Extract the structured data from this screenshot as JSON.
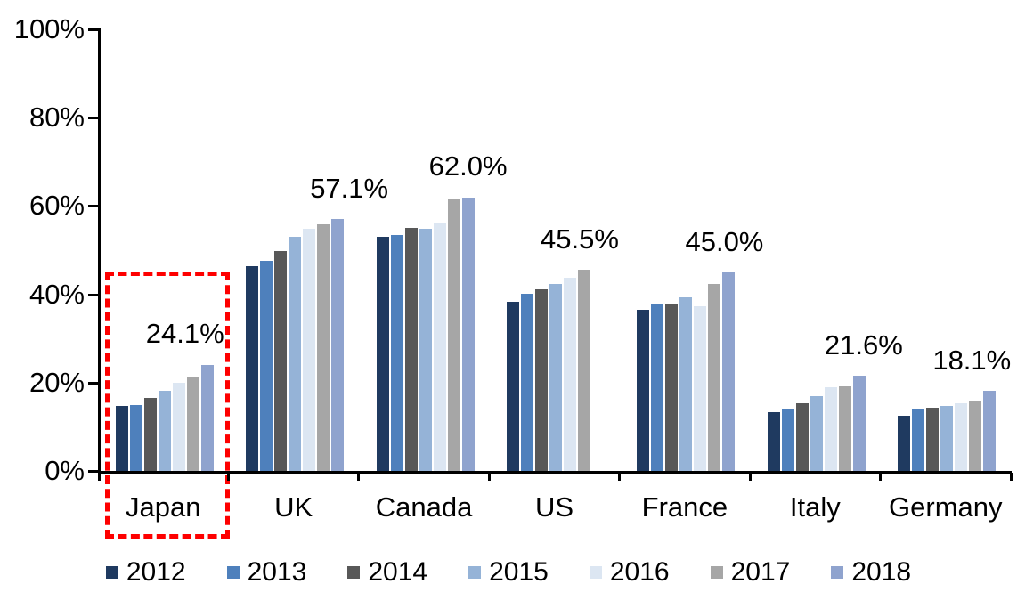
{
  "chart_data": {
    "type": "bar",
    "title": "",
    "categories": [
      "Japan",
      "UK",
      "Canada",
      "US",
      "France",
      "Italy",
      "Germany"
    ],
    "series": [
      {
        "name": "2012",
        "color": "#1F3A60",
        "values": [
          14.7,
          46.4,
          53.1,
          38.4,
          36.6,
          13.3,
          12.6
        ]
      },
      {
        "name": "2013",
        "color": "#4E80BC",
        "values": [
          14.9,
          47.6,
          53.5,
          40.2,
          37.8,
          14.1,
          13.9
        ]
      },
      {
        "name": "2014",
        "color": "#585858",
        "values": [
          16.6,
          49.8,
          55.1,
          41.2,
          37.7,
          15.3,
          14.3
        ]
      },
      {
        "name": "2015",
        "color": "#95B3D7",
        "values": [
          18.2,
          53.1,
          54.9,
          42.3,
          39.3,
          16.9,
          14.7
        ]
      },
      {
        "name": "2016",
        "color": "#DCE6F2",
        "values": [
          20.0,
          54.8,
          56.3,
          43.7,
          37.3,
          19.0,
          15.3
        ]
      },
      {
        "name": "2017",
        "color": "#A6A6A6",
        "values": [
          21.1,
          55.8,
          61.6,
          45.5,
          42.3,
          19.2,
          15.9
        ]
      },
      {
        "name": "2018",
        "color": "#8FA3CE",
        "values": [
          24.1,
          57.1,
          62.0,
          null,
          45.0,
          21.6,
          18.1
        ]
      }
    ],
    "data_labels": [
      "24.1%",
      "57.1%",
      "62.0%",
      "45.5%",
      "45.0%",
      "21.6%",
      "18.1%"
    ],
    "y_axis": {
      "min": 0,
      "max": 100,
      "tick_labels": [
        "0%",
        "20%",
        "40%",
        "60%",
        "80%",
        "100%"
      ],
      "grid": false
    },
    "legend": {
      "position": "bottom",
      "entries": [
        "2012",
        "2013",
        "2014",
        "2015",
        "2016",
        "2017",
        "2018"
      ]
    },
    "highlight": {
      "category": "Japan",
      "color": "#FE0000",
      "style": "dashed-box"
    }
  }
}
